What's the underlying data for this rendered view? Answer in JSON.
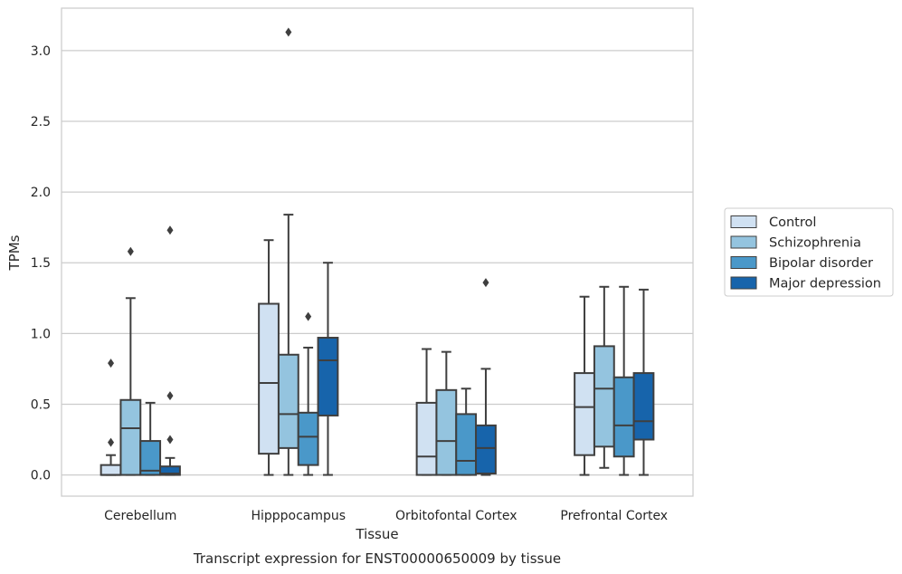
{
  "chart_data": {
    "type": "boxplot",
    "title": "",
    "caption": "Transcript expression for ENST00000650009 by tissue",
    "xlabel": "Tissue",
    "ylabel": "TPMs",
    "ylim": [
      -0.15,
      3.3
    ],
    "yticks": [
      "0.0",
      "0.5",
      "1.0",
      "1.5",
      "2.0",
      "2.5",
      "3.0"
    ],
    "ytick_values": [
      0,
      0.5,
      1.0,
      1.5,
      2.0,
      2.5,
      3.0
    ],
    "grid": "horizontal",
    "legend_position": "right",
    "categories": [
      "Cerebellum",
      "Hipppocampus",
      "Orbitofontal Cortex",
      "Prefrontal Cortex"
    ],
    "series": [
      {
        "name": "Control",
        "color": "#d0e1f2",
        "boxes": [
          {
            "whislo": 0.0,
            "q1": 0.0,
            "med": 0.0,
            "q3": 0.07,
            "whishi": 0.14,
            "fliers": [
              0.23,
              0.79
            ]
          },
          {
            "whislo": 0.0,
            "q1": 0.15,
            "med": 0.65,
            "q3": 1.21,
            "whishi": 1.66,
            "fliers": []
          },
          {
            "whislo": 0.0,
            "q1": 0.0,
            "med": 0.13,
            "q3": 0.51,
            "whishi": 0.89,
            "fliers": []
          },
          {
            "whislo": 0.0,
            "q1": 0.14,
            "med": 0.48,
            "q3": 0.72,
            "whishi": 1.26,
            "fliers": []
          }
        ]
      },
      {
        "name": "Schizophrenia",
        "color": "#94c4df",
        "boxes": [
          {
            "whislo": 0.0,
            "q1": 0.0,
            "med": 0.33,
            "q3": 0.53,
            "whishi": 1.25,
            "fliers": [
              1.58
            ]
          },
          {
            "whislo": 0.0,
            "q1": 0.19,
            "med": 0.43,
            "q3": 0.85,
            "whishi": 1.84,
            "fliers": [
              3.13
            ]
          },
          {
            "whislo": 0.0,
            "q1": 0.0,
            "med": 0.24,
            "q3": 0.6,
            "whishi": 0.87,
            "fliers": []
          },
          {
            "whislo": 0.05,
            "q1": 0.2,
            "med": 0.61,
            "q3": 0.91,
            "whishi": 1.33,
            "fliers": []
          }
        ]
      },
      {
        "name": "Bipolar disorder",
        "color": "#4a98c9",
        "boxes": [
          {
            "whislo": 0.0,
            "q1": 0.0,
            "med": 0.03,
            "q3": 0.24,
            "whishi": 0.51,
            "fliers": []
          },
          {
            "whislo": 0.0,
            "q1": 0.07,
            "med": 0.27,
            "q3": 0.44,
            "whishi": 0.9,
            "fliers": [
              1.12
            ]
          },
          {
            "whislo": 0.0,
            "q1": 0.0,
            "med": 0.1,
            "q3": 0.43,
            "whishi": 0.61,
            "fliers": []
          },
          {
            "whislo": 0.0,
            "q1": 0.13,
            "med": 0.35,
            "q3": 0.69,
            "whishi": 1.33,
            "fliers": []
          }
        ]
      },
      {
        "name": "Major depression",
        "color": "#1764ab",
        "boxes": [
          {
            "whislo": 0.0,
            "q1": 0.0,
            "med": 0.01,
            "q3": 0.06,
            "whishi": 0.12,
            "fliers": [
              0.25,
              0.56,
              1.73
            ]
          },
          {
            "whislo": 0.0,
            "q1": 0.42,
            "med": 0.81,
            "q3": 0.97,
            "whishi": 1.5,
            "fliers": []
          },
          {
            "whislo": 0.0,
            "q1": 0.01,
            "med": 0.19,
            "q3": 0.35,
            "whishi": 0.75,
            "fliers": [
              1.36
            ]
          },
          {
            "whislo": 0.0,
            "q1": 0.25,
            "med": 0.38,
            "q3": 0.72,
            "whishi": 1.31,
            "fliers": []
          }
        ]
      }
    ],
    "colors": {
      "grid": "#cccccc",
      "frame": "#cccccc",
      "box_edge": "#3f3f3f",
      "text": "#262626"
    }
  }
}
